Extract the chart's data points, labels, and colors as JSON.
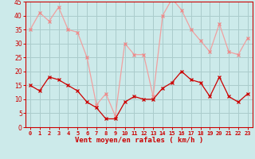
{
  "x": [
    0,
    1,
    2,
    3,
    4,
    5,
    6,
    7,
    8,
    9,
    10,
    11,
    12,
    13,
    14,
    15,
    16,
    17,
    18,
    19,
    20,
    21,
    22,
    23
  ],
  "rafales": [
    35,
    41,
    38,
    43,
    35,
    34,
    25,
    8,
    12,
    4,
    30,
    26,
    26,
    11,
    40,
    46,
    42,
    35,
    31,
    27,
    37,
    27,
    26,
    32
  ],
  "moyen": [
    15,
    13,
    18,
    17,
    15,
    13,
    9,
    7,
    3,
    3,
    9,
    11,
    10,
    10,
    14,
    16,
    20,
    17,
    16,
    11,
    18,
    11,
    9,
    12
  ],
  "xlabel": "Vent moyen/en rafales ( km/h )",
  "ylim": [
    0,
    45
  ],
  "yticks": [
    0,
    5,
    10,
    15,
    20,
    25,
    30,
    35,
    40,
    45
  ],
  "xticks": [
    0,
    1,
    2,
    3,
    4,
    5,
    6,
    7,
    8,
    9,
    10,
    11,
    12,
    13,
    14,
    15,
    16,
    17,
    18,
    19,
    20,
    21,
    22,
    23
  ],
  "bg_color": "#cceaea",
  "grid_color": "#aacccc",
  "line_color_rafales": "#f0a0a0",
  "line_color_moyen": "#cc0000",
  "marker_color_rafales": "#ee8888",
  "marker_color_moyen": "#cc0000",
  "xlabel_color": "#cc0000",
  "tick_color": "#cc0000",
  "axis_color": "#cc0000",
  "spine_color": "#cc0000"
}
